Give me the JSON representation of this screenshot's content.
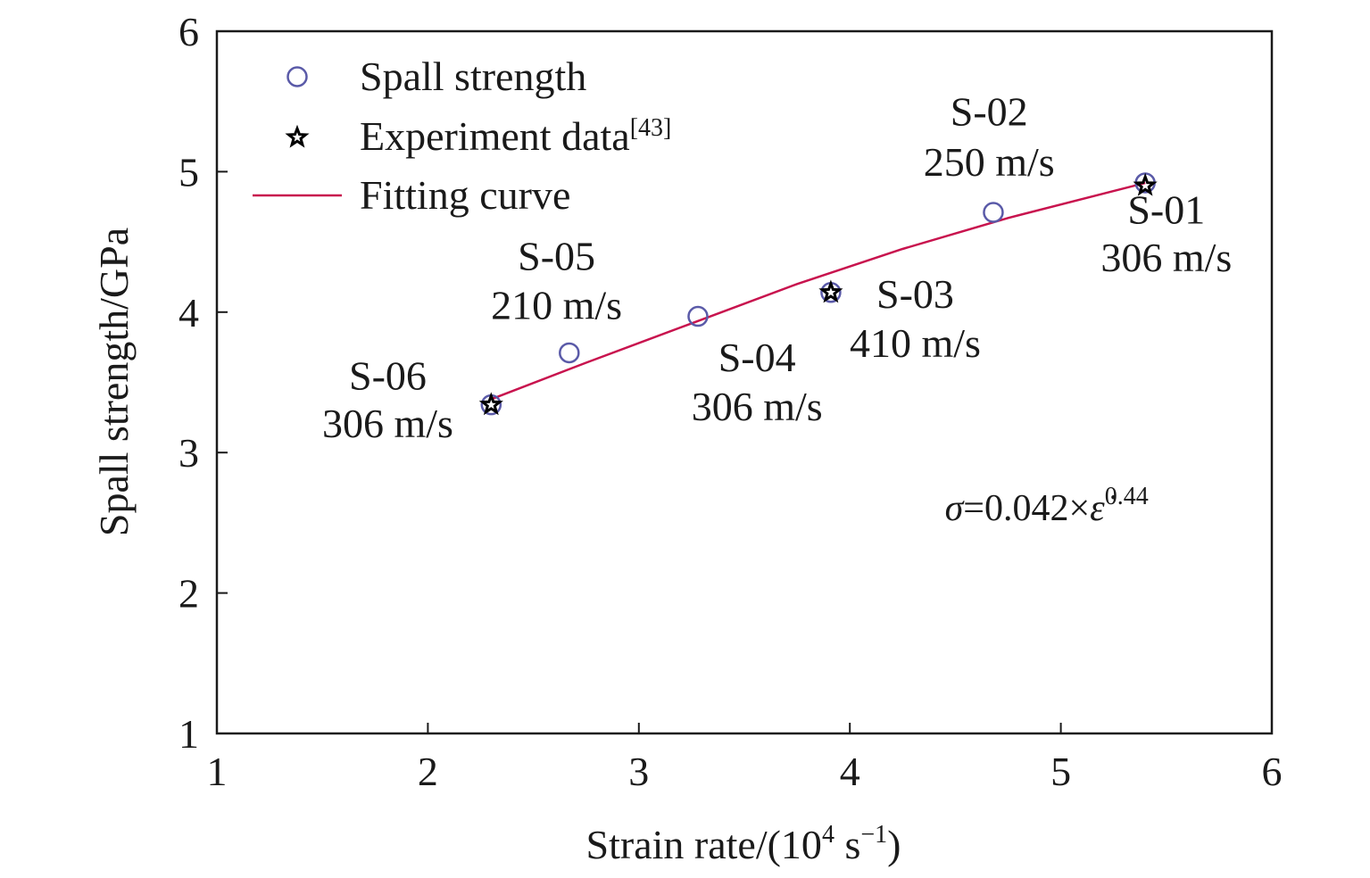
{
  "chart_data": {
    "type": "scatter",
    "xlabel": {
      "main": "Strain rate/(10",
      "sup1": "4",
      "mid": " s",
      "sup2": "−1",
      "end": ")"
    },
    "ylabel": "Spall strength/GPa",
    "xlim": [
      1,
      6
    ],
    "ylim": [
      1,
      6
    ],
    "xticks": [
      "1",
      "2",
      "3",
      "4",
      "5",
      "6"
    ],
    "yticks": [
      "1",
      "2",
      "3",
      "4",
      "5",
      "6"
    ],
    "grid": false,
    "legend_position": "top-left",
    "series": [
      {
        "name": "Spall strength",
        "marker": "circle",
        "color": "#5a5aa8",
        "x": [
          2.3,
          2.67,
          3.28,
          3.91,
          4.68,
          5.4
        ],
        "y": [
          3.34,
          3.71,
          3.97,
          4.14,
          4.71,
          4.92
        ]
      },
      {
        "name": "Experiment data",
        "name_sup": "[43]",
        "marker": "star",
        "color": "#000000",
        "x": [
          2.3,
          3.91,
          5.4
        ],
        "y": [
          3.34,
          4.14,
          4.9
        ]
      },
      {
        "name": "Fitting curve",
        "marker": "line",
        "color": "#c8134e",
        "x": [
          2.3,
          2.75,
          3.25,
          3.75,
          4.25,
          4.75,
          5.4
        ],
        "y": [
          3.38,
          3.64,
          3.92,
          4.2,
          4.45,
          4.67,
          4.92
        ]
      }
    ],
    "annotations": [
      {
        "id": "S-01",
        "line1": "S-01",
        "line2": "306 m/s",
        "x": 5.5,
        "y1": 4.63,
        "y2": 4.29
      },
      {
        "id": "S-02",
        "line1": "S-02",
        "line2": "250 m/s",
        "x": 4.66,
        "y1": 5.33,
        "y2": 4.97
      },
      {
        "id": "S-03",
        "line1": "S-03",
        "line2": "410 m/s",
        "x": 4.31,
        "y1": 4.03,
        "y2": 3.68
      },
      {
        "id": "S-04",
        "line1": "S-04",
        "line2": "306 m/s",
        "x": 3.56,
        "y1": 3.58,
        "y2": 3.23
      },
      {
        "id": "S-05",
        "line1": "S-05",
        "line2": "210 m/s",
        "x": 2.61,
        "y1": 4.3,
        "y2": 3.95
      },
      {
        "id": "S-06",
        "line1": "S-06",
        "line2": "306 m/s",
        "x": 1.81,
        "y1": 3.45,
        "y2": 3.11
      }
    ],
    "formula": {
      "lhs": "σ",
      "body": "=0.042×",
      "var": "ε̇",
      "exp": "0.44",
      "x": 4.45,
      "y": 2.52
    }
  }
}
